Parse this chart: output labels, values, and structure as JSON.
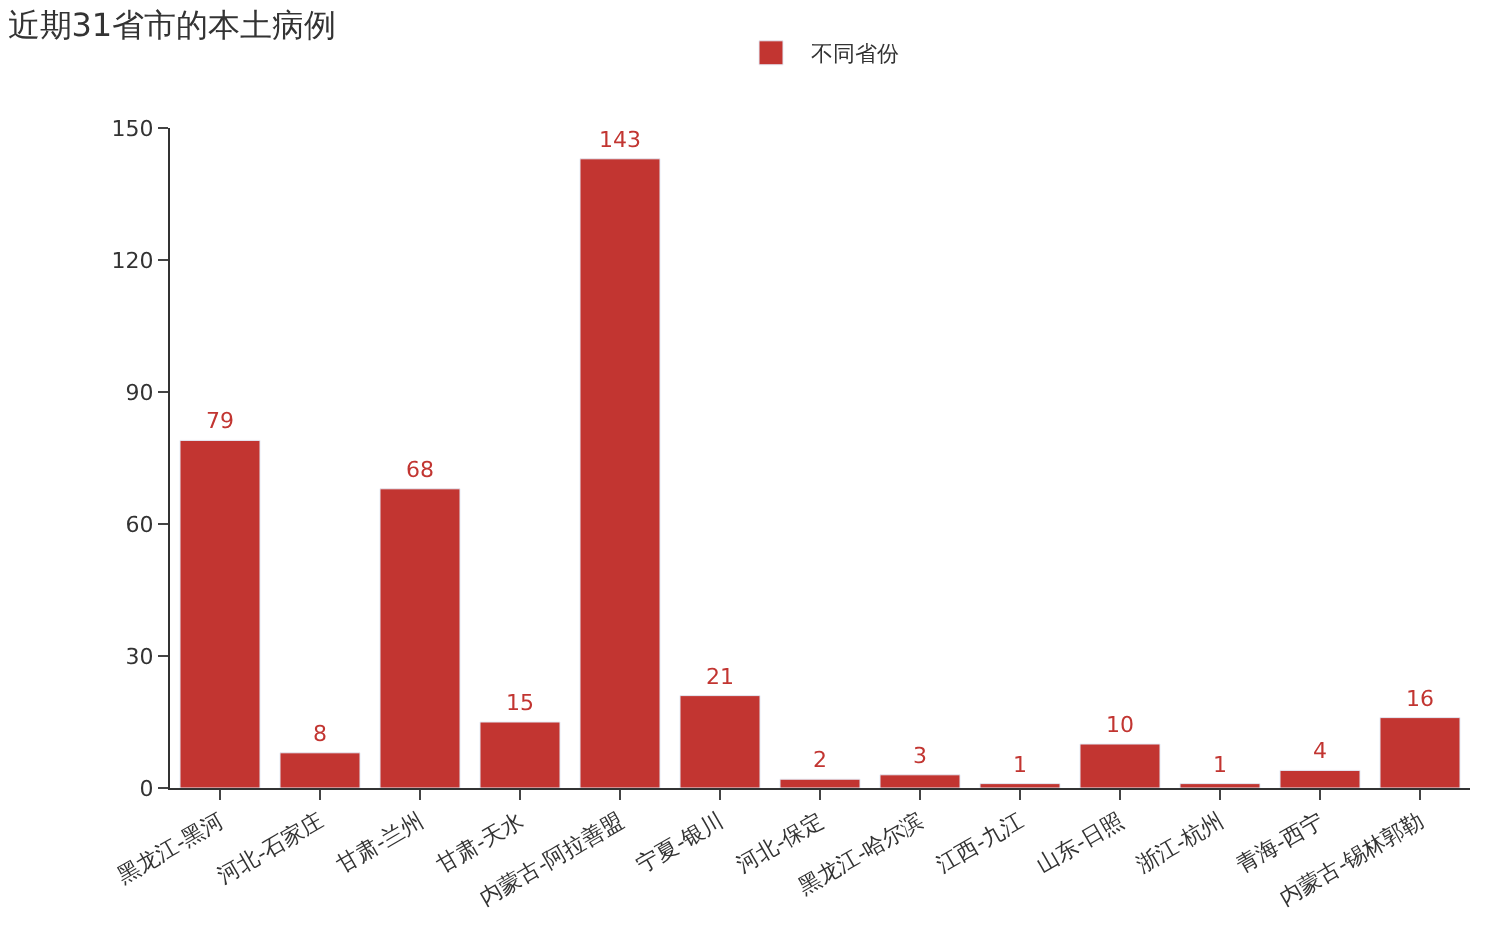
{
  "chart_data": {
    "type": "bar",
    "title": "近期31省市的本土病例",
    "categories": [
      "黑龙江-黑河",
      "河北-石家庄",
      "甘肃-兰州",
      "甘肃-天水",
      "内蒙古-阿拉善盟",
      "宁夏-银川",
      "河北-保定",
      "黑龙江-哈尔滨",
      "江西-九江",
      "山东-日照",
      "浙江-杭州",
      "青海-西宁",
      "内蒙古-锡林郭勒"
    ],
    "series": [
      {
        "name": "不同省份",
        "color": "#c23531",
        "values": [
          79,
          8,
          68,
          15,
          143,
          21,
          2,
          3,
          1,
          10,
          1,
          4,
          16
        ]
      }
    ],
    "ylim": [
      0,
      150
    ],
    "yticks": [
      0,
      30,
      60,
      90,
      120,
      150
    ],
    "data_labels": true,
    "legend": "top"
  }
}
